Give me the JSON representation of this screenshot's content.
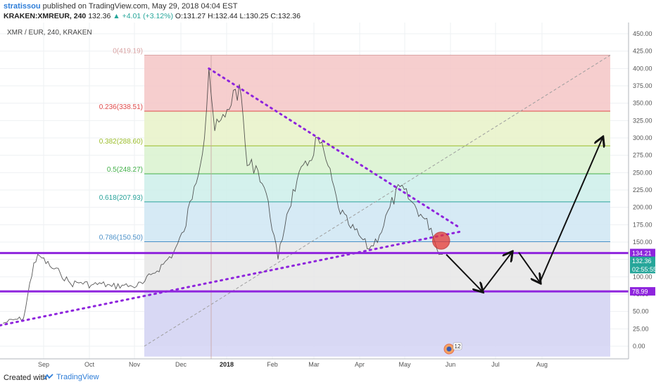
{
  "header": {
    "author": "stratissou",
    "publish_text": "published on TradingView.com, May 29, 2018 04:04 EST",
    "symbol": "KRAKEN:XMREUR, 240",
    "last": "132.36",
    "change": "+4.01 (+3.12%)",
    "ohlc": "O:131.27 H:132.44 L:130.25 C:132.36",
    "arrow": "▲"
  },
  "chart_label": "XMR / EUR, 240, KRAKEN",
  "footer": {
    "created_with": "Created with",
    "brand": "TradingView"
  },
  "colors": {
    "purple": "#8e24dd",
    "grid": "#eef0f3",
    "fib_0": "#f4c6c6",
    "fib_236": "#e8f2c8",
    "fib_382": "#d9f2cf",
    "fib_5": "#cdeeea",
    "fib_618": "#cfe6f3",
    "fib_786": "#e6e6e6",
    "fib_1": "#d6d6f5"
  },
  "chart_data": {
    "type": "line",
    "series": [
      {
        "values": [
          [
            "Aug 3",
            33
          ],
          [
            "Aug 10",
            38
          ],
          [
            "Aug 17",
            40
          ],
          [
            "Aug 24",
            120
          ],
          [
            "Aug 28",
            130
          ],
          [
            "Sep 4",
            115
          ],
          [
            "Sep 11",
            105
          ],
          [
            "Sep 18",
            90
          ],
          [
            "Sep 25",
            92
          ],
          [
            "Oct 2",
            88
          ],
          [
            "Oct 9",
            90
          ],
          [
            "Oct 16",
            86
          ],
          [
            "Oct 23",
            88
          ],
          [
            "Oct 30",
            86
          ],
          [
            "Nov 6",
            90
          ],
          [
            "Nov 13",
            105
          ],
          [
            "Nov 20",
            118
          ],
          [
            "Nov 27",
            135
          ],
          [
            "Dec 4",
            165
          ],
          [
            "Dec 11",
            230
          ],
          [
            "Dec 18",
            300
          ],
          [
            "Dec 21",
            400
          ],
          [
            "Dec 25",
            310
          ],
          [
            "Jan 1",
            330
          ],
          [
            "Jan 8",
            370
          ],
          [
            "Jan 12",
            360
          ],
          [
            "Jan 16",
            260
          ],
          [
            "Jan 22",
            260
          ],
          [
            "Jan 29",
            220
          ],
          [
            "Feb 6",
            125
          ],
          [
            "Feb 12",
            190
          ],
          [
            "Feb 19",
            240
          ],
          [
            "Feb 26",
            260
          ],
          [
            "Mar 5",
            300
          ],
          [
            "Mar 12",
            260
          ],
          [
            "Mar 19",
            200
          ],
          [
            "Mar 26",
            175
          ],
          [
            "Apr 2",
            160
          ],
          [
            "Apr 9",
            140
          ],
          [
            "Apr 16",
            160
          ],
          [
            "Apr 23",
            200
          ],
          [
            "Apr 30",
            230
          ],
          [
            "May 7",
            210
          ],
          [
            "May 14",
            190
          ],
          [
            "May 21",
            170
          ],
          [
            "May 25",
            140
          ],
          [
            "May 29",
            132.36
          ]
        ]
      }
    ],
    "fibonacci": [
      {
        "label": "0(419.19)",
        "value": 419.19,
        "color": "#d8a3a3"
      },
      {
        "label": "0.236(338.51)",
        "value": 338.51,
        "color": "#e04b4b"
      },
      {
        "label": "0.382(288.60)",
        "value": 288.6,
        "color": "#9bbd2a"
      },
      {
        "label": "0.5(248.27)",
        "value": 248.27,
        "color": "#44b04a"
      },
      {
        "label": "0.618(207.93)",
        "value": 207.93,
        "color": "#2aa39b"
      },
      {
        "label": "0.786(150.50)",
        "value": 150.5,
        "color": "#4a90c8"
      }
    ],
    "fib_bottom": 0,
    "support_lines": [
      {
        "label": "134.21",
        "value": 134.21
      },
      {
        "label": "78.99",
        "value": 78.99
      }
    ],
    "current_price_label": "132.36",
    "countdown": "02:55:55",
    "trendlines": [
      {
        "from": [
          "Aug 1",
          30
        ],
        "to": [
          "Jun 10",
          165
        ]
      },
      {
        "from": [
          "Dec 21",
          400
        ],
        "to": [
          "Jun 10",
          170
        ]
      }
    ],
    "projection_path": [
      [
        "May 29",
        132
      ],
      [
        "Jun 19",
        79
      ],
      [
        "Jul 14",
        135
      ],
      [
        "Jul 17",
        135
      ],
      [
        "Jul 29",
        92
      ],
      [
        "Aug 22",
        300
      ]
    ],
    "x_ticks": [
      "Sep",
      "Oct",
      "Nov",
      "Dec",
      "2018",
      "Feb",
      "Mar",
      "Apr",
      "May",
      "Jun",
      "Jul",
      "Aug"
    ],
    "y_ticks": [
      "450.00",
      "425.00",
      "400.00",
      "375.00",
      "350.00",
      "325.00",
      "300.00",
      "275.00",
      "250.00",
      "225.00",
      "200.00",
      "175.00",
      "150.00",
      "125.00",
      "100.00",
      "75.00",
      "50.00",
      "25.00",
      "0.00"
    ],
    "ylim": [
      -15,
      462
    ],
    "grid": true,
    "event_badge": "12"
  }
}
